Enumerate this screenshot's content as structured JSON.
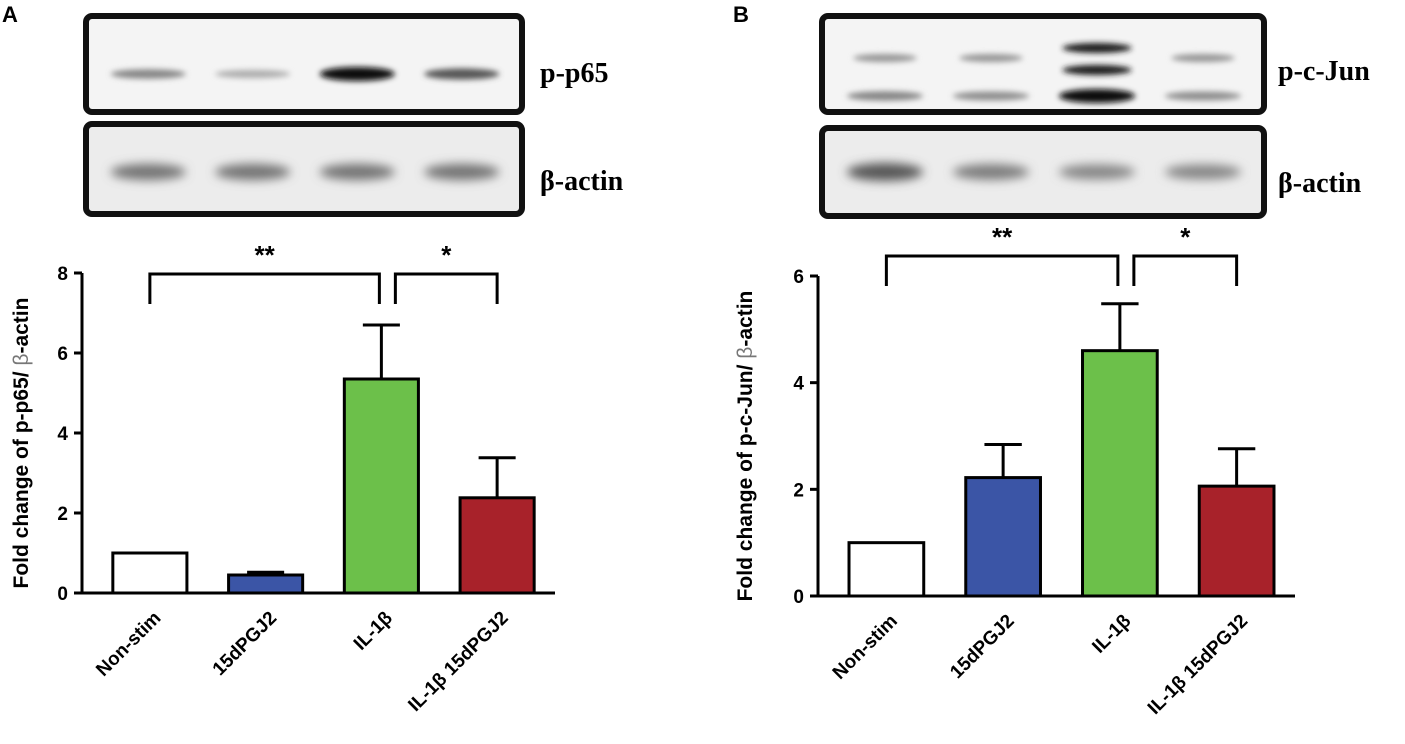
{
  "panels": [
    {
      "letter": "A",
      "blots": [
        {
          "label": "p-p65",
          "band_intensities": [
            0.35,
            0.15,
            1.0,
            0.6
          ]
        },
        {
          "label": "β-actin",
          "band_intensities": [
            0.45,
            0.45,
            0.45,
            0.45
          ]
        }
      ],
      "sig_labels": [
        "**",
        "*"
      ]
    },
    {
      "letter": "B",
      "blots": [
        {
          "label": "p-c-Jun",
          "band_intensities": [
            0.35,
            0.3,
            1.0,
            0.3
          ]
        },
        {
          "label": "β-actin",
          "band_intensities": [
            0.6,
            0.4,
            0.35,
            0.35
          ]
        }
      ],
      "sig_labels": [
        "**",
        "*"
      ]
    }
  ],
  "chart_data": [
    {
      "type": "bar",
      "categories": [
        "Non-stim",
        "15dPGJ2",
        "IL-1β",
        "IL-1β 15dPGJ2"
      ],
      "values": [
        1.0,
        0.45,
        5.35,
        2.38
      ],
      "errors": [
        0.0,
        0.07,
        1.35,
        1.0
      ],
      "colors": [
        "#ffffff",
        "#3b55a6",
        "#6cc04a",
        "#a8222a"
      ],
      "ylabel": "Fold change of p-p65/ β-actin",
      "ylim": [
        0,
        8
      ],
      "yticks": [
        0,
        2,
        4,
        6,
        8
      ],
      "significance": [
        {
          "from": 0,
          "to": 2,
          "label": "**"
        },
        {
          "from": 2,
          "to": 3,
          "label": "*"
        }
      ]
    },
    {
      "type": "bar",
      "categories": [
        "Non-stim",
        "15dPGJ2",
        "IL-1β",
        "IL-1β 15dPGJ2"
      ],
      "values": [
        1.0,
        2.22,
        4.6,
        2.06
      ],
      "errors": [
        0.0,
        0.62,
        0.88,
        0.7
      ],
      "colors": [
        "#ffffff",
        "#3b55a6",
        "#6cc04a",
        "#a8222a"
      ],
      "ylabel": "Fold change of p-c-Jun/ β-actin",
      "ylim": [
        0,
        6
      ],
      "yticks": [
        0,
        2,
        4,
        6
      ],
      "significance": [
        {
          "from": 0,
          "to": 2,
          "label": "**"
        },
        {
          "from": 2,
          "to": 3,
          "label": "*"
        }
      ]
    }
  ]
}
